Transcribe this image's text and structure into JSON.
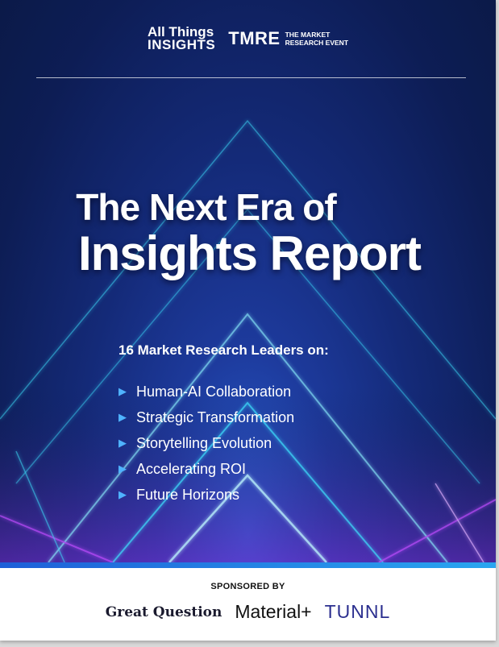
{
  "logos": {
    "ati_line1": "All Things",
    "ati_line2": "INSIGHTS",
    "tmre": "TMRE",
    "tmre_line1": "THE MARKET",
    "tmre_line2": "RESEARCH EVENT"
  },
  "title": {
    "line1": "The Next Era of",
    "line2": "Insights Report"
  },
  "subtitle": "16 Market Research Leaders on:",
  "topics": [
    "Human-AI Collaboration",
    "Strategic Transformation",
    "Storytelling Evolution",
    "Accelerating ROI",
    "Future Horizons"
  ],
  "sponsored_by": "SPONSORED BY",
  "sponsors": [
    "Great Question",
    "Material+",
    "TUNNL"
  ],
  "colors": {
    "background": "#0b1a48",
    "accent": "#4fb3ff",
    "band": "#2aa6f0",
    "neon_cyan": "#3ee6ff",
    "neon_purple": "#c04dff"
  }
}
